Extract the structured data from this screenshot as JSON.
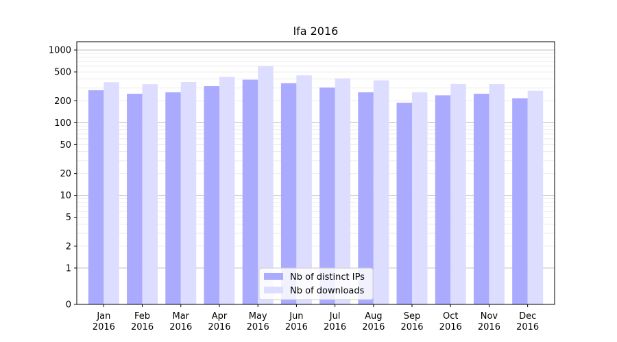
{
  "chart_data": {
    "type": "bar",
    "title": "lfa 2016",
    "xlabel": "",
    "ylabel": "",
    "categories": [
      [
        "Jan",
        "2016"
      ],
      [
        "Feb",
        "2016"
      ],
      [
        "Mar",
        "2016"
      ],
      [
        "Apr",
        "2016"
      ],
      [
        "May",
        "2016"
      ],
      [
        "Jun",
        "2016"
      ],
      [
        "Jul",
        "2016"
      ],
      [
        "Aug",
        "2016"
      ],
      [
        "Sep",
        "2016"
      ],
      [
        "Oct",
        "2016"
      ],
      [
        "Nov",
        "2016"
      ],
      [
        "Dec",
        "2016"
      ]
    ],
    "series": [
      {
        "name": "Nb of distinct IPs",
        "color": "#aaaaff",
        "values": [
          280,
          250,
          262,
          318,
          390,
          350,
          305,
          262,
          188,
          238,
          250,
          217
        ]
      },
      {
        "name": "Nb of downloads",
        "color": "#ddddff",
        "values": [
          360,
          338,
          362,
          428,
          600,
          448,
          408,
          382,
          262,
          340,
          340,
          275
        ]
      }
    ],
    "yscale": "symlog",
    "ylim": [
      0,
      1300
    ],
    "yticks": [
      0,
      1,
      2,
      5,
      10,
      20,
      50,
      100,
      200,
      500,
      1000
    ],
    "ytick_labels": [
      "0",
      "1",
      "2",
      "5",
      "10",
      "20",
      "50",
      "100",
      "200",
      "500",
      "1000"
    ],
    "grid": true,
    "legend_placement": "lower-center"
  }
}
